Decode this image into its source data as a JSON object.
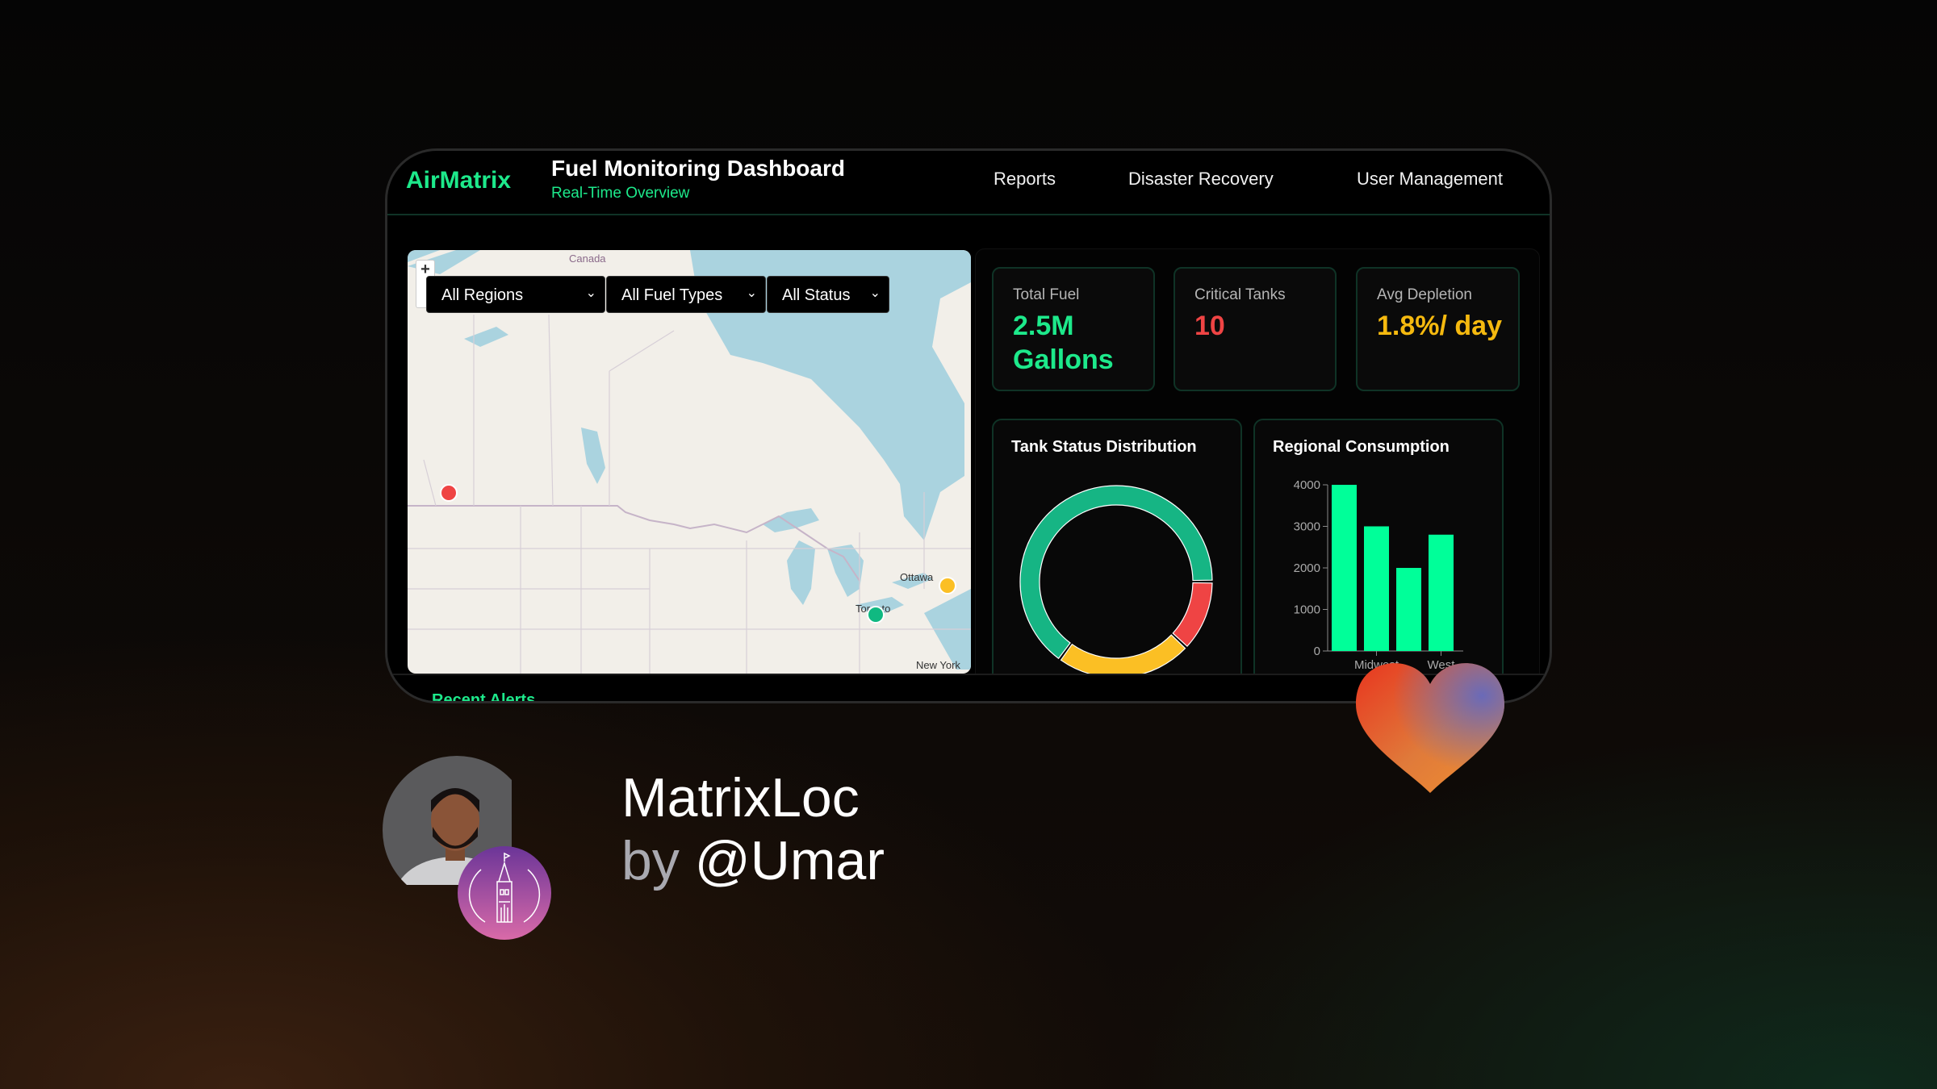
{
  "header": {
    "logo": "AirMatrix",
    "title": "Fuel Monitoring Dashboard",
    "subtitle": "Real-Time Overview",
    "nav": [
      "Reports",
      "Disaster Recovery",
      "User Management"
    ]
  },
  "map": {
    "filters": [
      {
        "value": "All Regions"
      },
      {
        "value": "All Fuel Types"
      },
      {
        "value": "All Status"
      }
    ],
    "zoom_in": "+",
    "labels": {
      "country": "Canada",
      "ottawa": "Ottawa",
      "toronto": "Toronto",
      "new_york": "New York"
    },
    "markers": [
      {
        "status": "critical",
        "color": "#ef4444"
      },
      {
        "status": "warning",
        "color": "#fbbf24"
      },
      {
        "status": "normal",
        "color": "#10b981"
      }
    ]
  },
  "stats": [
    {
      "label": "Total Fuel",
      "value": "2.5M Gallons",
      "color": "#1de98b"
    },
    {
      "label": "Critical Tanks",
      "value": "10",
      "color": "#ef4444"
    },
    {
      "label": "Avg Depletion",
      "value": "1.8%/ day",
      "color": "#f5b90f"
    }
  ],
  "chart_data": [
    {
      "type": "pie",
      "title": "Tank Status Distribution",
      "donut": true,
      "values": [
        65,
        23,
        12
      ],
      "colors": [
        "#16b584",
        "#fbbf24",
        "#ef4444"
      ]
    },
    {
      "type": "bar",
      "title": "Regional Consumption",
      "categories": [
        "",
        "Midwest",
        "",
        "West"
      ],
      "values": [
        4000,
        3000,
        2000,
        2800
      ],
      "ylim": [
        0,
        4000
      ],
      "yticks": [
        0,
        1000,
        2000,
        3000,
        4000
      ],
      "color": "#00ff99",
      "grid": false
    }
  ],
  "alerts": {
    "title": "Recent Alerts"
  },
  "credit": {
    "name": "MatrixLoc",
    "by": "by",
    "handle": "@Umar"
  }
}
